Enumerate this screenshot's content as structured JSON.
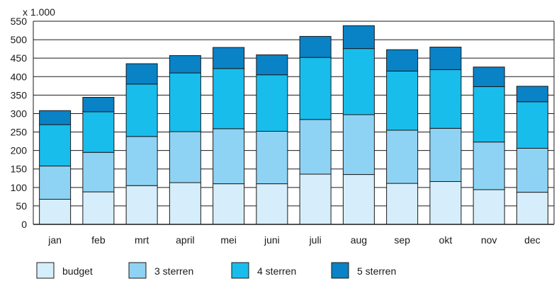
{
  "chart_data": {
    "type": "bar",
    "stacked": true,
    "unit_label": "x 1.000",
    "categories": [
      "jan",
      "feb",
      "mrt",
      "april",
      "mei",
      "juni",
      "juli",
      "aug",
      "sep",
      "okt",
      "nov",
      "dec"
    ],
    "series": [
      {
        "name": "budget",
        "color": "#d6eefb",
        "values": [
          68,
          88,
          105,
          113,
          110,
          110,
          136,
          135,
          111,
          116,
          94,
          87
        ]
      },
      {
        "name": "3 sterren",
        "color": "#8fd3f4",
        "values": [
          90,
          107,
          133,
          138,
          149,
          142,
          148,
          162,
          144,
          144,
          129,
          119
        ]
      },
      {
        "name": "4 sterren",
        "color": "#19bdec",
        "values": [
          112,
          110,
          142,
          159,
          163,
          153,
          168,
          179,
          160,
          159,
          150,
          126
        ]
      },
      {
        "name": "5 sterren",
        "color": "#0a82c6",
        "values": [
          38,
          39,
          55,
          47,
          57,
          54,
          57,
          62,
          58,
          61,
          53,
          42
        ]
      }
    ],
    "ylim": [
      0,
      550
    ],
    "yticks": [
      0,
      50,
      100,
      150,
      200,
      250,
      300,
      350,
      400,
      450,
      500,
      550
    ],
    "grid": true,
    "legend_position": "bottom"
  }
}
